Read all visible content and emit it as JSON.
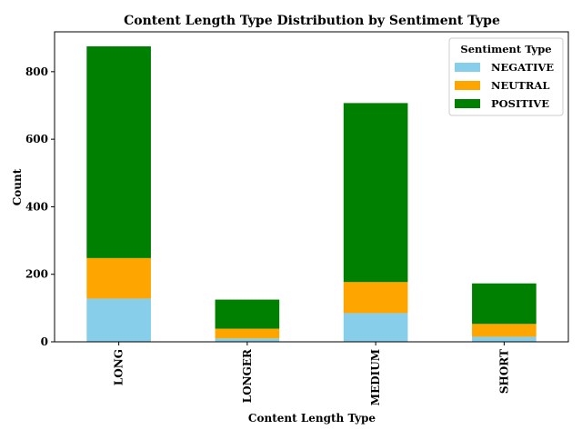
{
  "chart_data": {
    "type": "bar",
    "stacked": true,
    "title": "Content Length Type Distribution by Sentiment Type",
    "xlabel": "Content Length Type",
    "ylabel": "Count",
    "categories": [
      "LONG",
      "LONGER",
      "MEDIUM",
      "SHORT"
    ],
    "series": [
      {
        "name": "NEGATIVE",
        "color": "#87ceeb",
        "values": [
          128,
          10,
          85,
          15
        ]
      },
      {
        "name": "NEUTRAL",
        "color": "#ffa500",
        "values": [
          120,
          29,
          92,
          38
        ]
      },
      {
        "name": "POSITIVE",
        "color": "#008000",
        "values": [
          627,
          86,
          530,
          120
        ]
      }
    ],
    "ylim": [
      0,
      918
    ],
    "yticks": [
      0,
      200,
      400,
      600,
      800
    ],
    "legend": {
      "title": "Sentiment Type",
      "position": "top-right"
    },
    "grid": false
  }
}
